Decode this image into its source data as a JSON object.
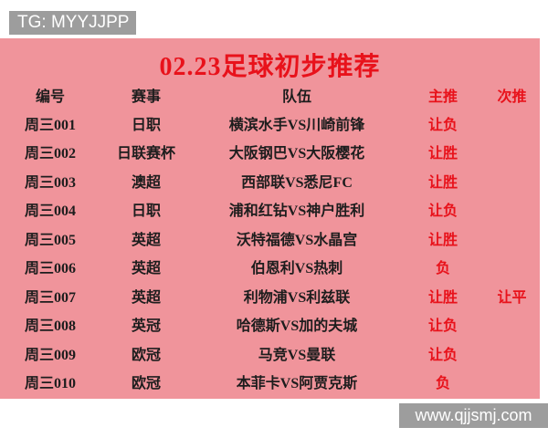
{
  "badges": {
    "telegram": "TG: MYYJJPP",
    "website": "www.qjjsmj.com"
  },
  "title": "02.23足球初步推荐",
  "table": {
    "headers": [
      "编号",
      "赛事",
      "队伍",
      "主推",
      "次推"
    ],
    "rows": [
      {
        "id": "周三001",
        "league": "日职",
        "match": "横滨水手VS川崎前锋",
        "main": "让负",
        "secondary": ""
      },
      {
        "id": "周三002",
        "league": "日联赛杯",
        "match": "大阪钢巴VS大阪樱花",
        "main": "让胜",
        "secondary": ""
      },
      {
        "id": "周三003",
        "league": "澳超",
        "match": "西部联VS悉尼FC",
        "main": "让胜",
        "secondary": ""
      },
      {
        "id": "周三004",
        "league": "日职",
        "match": "浦和红钻VS神户胜利",
        "main": "让负",
        "secondary": ""
      },
      {
        "id": "周三005",
        "league": "英超",
        "match": "沃特福德VS水晶宫",
        "main": "让胜",
        "secondary": ""
      },
      {
        "id": "周三006",
        "league": "英超",
        "match": "伯恩利VS热刺",
        "main": "负",
        "secondary": ""
      },
      {
        "id": "周三007",
        "league": "英超",
        "match": "利物浦VS利兹联",
        "main": "让胜",
        "secondary": "让平"
      },
      {
        "id": "周三008",
        "league": "英冠",
        "match": "哈德斯VS加的夫城",
        "main": "让负",
        "secondary": ""
      },
      {
        "id": "周三009",
        "league": "欧冠",
        "match": "马竞VS曼联",
        "main": "让负",
        "secondary": ""
      },
      {
        "id": "周三010",
        "league": "欧冠",
        "match": "本菲卡VS阿贾克斯",
        "main": "负",
        "secondary": ""
      }
    ]
  },
  "colors": {
    "panel_pink": "#f0949b",
    "accent_red": "#e8121b",
    "text_black": "#1d1d1d",
    "badge_gray": "#9d9d9d"
  }
}
